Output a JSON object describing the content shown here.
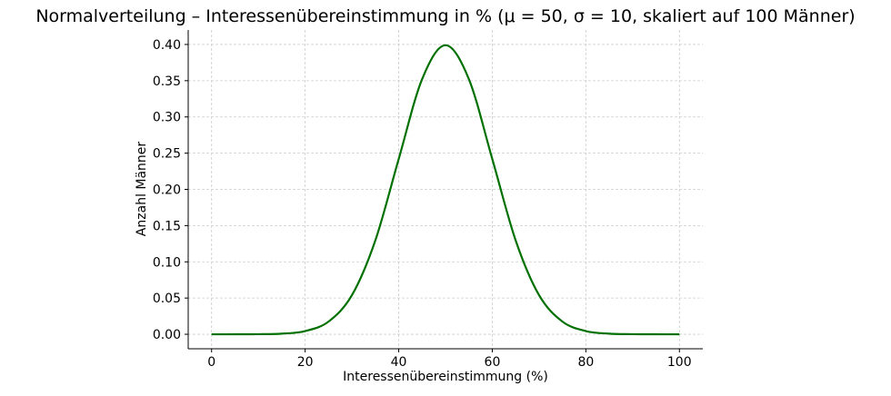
{
  "chart_data": {
    "type": "line",
    "title": "Normalverteilung – Interessenübereinstimmung in % (μ = 50, σ = 10, skaliert auf 100 Männer)",
    "xlabel": "Interessenübereinstimmung (%)",
    "ylabel": "Anzahl Männer",
    "xlim": [
      -5,
      105
    ],
    "ylim": [
      -0.02,
      0.42
    ],
    "xticks": [
      "0",
      "20",
      "40",
      "60",
      "80",
      "100"
    ],
    "yticks": [
      "0.00",
      "0.05",
      "0.10",
      "0.15",
      "0.20",
      "0.25",
      "0.30",
      "0.35",
      "0.40"
    ],
    "grid": true,
    "line_color": "#007000",
    "series": [
      {
        "x": [
          0,
          5,
          10,
          15,
          20,
          25,
          30,
          35,
          40,
          45,
          50,
          55,
          60,
          65,
          70,
          75,
          80,
          85,
          90,
          95,
          100
        ],
        "y": [
          1.5e-06,
          1.6e-05,
          0.000134,
          0.000873,
          0.00443,
          0.01753,
          0.05399,
          0.12952,
          0.24197,
          0.35207,
          0.39894,
          0.35207,
          0.24197,
          0.12952,
          0.05399,
          0.01753,
          0.00443,
          0.000873,
          0.000134,
          1.6e-05,
          1.5e-06
        ]
      }
    ]
  }
}
